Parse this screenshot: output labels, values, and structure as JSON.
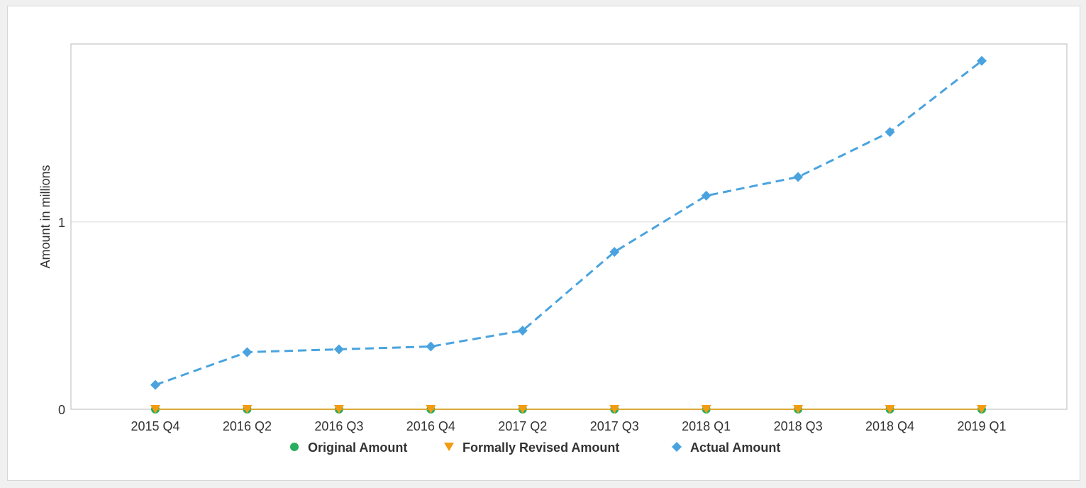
{
  "chart_data": {
    "type": "line",
    "categories": [
      "2015 Q4",
      "2016 Q2",
      "2016 Q3",
      "2016 Q4",
      "2017 Q2",
      "2017 Q3",
      "2018 Q1",
      "2018 Q3",
      "2018 Q4",
      "2019 Q1"
    ],
    "ylabel": "Amount in millions",
    "xlabel": "",
    "ylim": [
      0,
      1.95
    ],
    "yticks": [
      0,
      1
    ],
    "grid": true,
    "legend_position": "bottom",
    "series": [
      {
        "name": "Original Amount",
        "color": "#27ae60",
        "marker": "circle",
        "values": [
          0,
          0,
          0,
          0,
          0,
          0,
          0,
          0,
          0,
          0
        ]
      },
      {
        "name": "Formally Revised Amount",
        "color": "#f39c12",
        "marker": "triangle-down",
        "values": [
          0,
          0,
          0,
          0,
          0,
          0,
          0,
          0,
          0,
          0
        ]
      },
      {
        "name": "Actual Amount",
        "color": "#4aa3df",
        "marker": "diamond",
        "line_style": "dashed",
        "values": [
          0.13,
          0.305,
          0.32,
          0.335,
          0.42,
          0.84,
          1.14,
          1.24,
          1.48,
          1.86
        ]
      }
    ]
  }
}
